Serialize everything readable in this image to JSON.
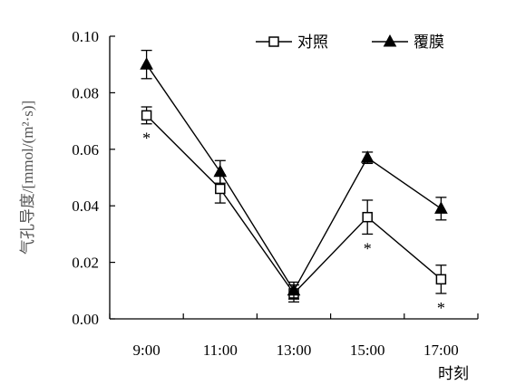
{
  "chart_data": {
    "type": "line",
    "title": "",
    "xlabel": "时刻",
    "ylabel": "气孔导度/[mmol/(m²·s)]",
    "ylim": [
      0,
      0.1
    ],
    "yticks": [
      "0.00",
      "0.02",
      "0.04",
      "0.06",
      "0.08",
      "0.10"
    ],
    "categories": [
      "9:00",
      "11:00",
      "13:00",
      "15:00",
      "17:00"
    ],
    "legend_placement": "top-right",
    "grid": false,
    "series": [
      {
        "name": "对照",
        "marker": "open-square",
        "color": "#000000",
        "values": [
          0.072,
          0.046,
          0.009,
          0.036,
          0.014
        ],
        "errors": [
          0.003,
          0.005,
          0.003,
          0.006,
          0.005
        ],
        "significance": [
          "*",
          "",
          "",
          "*",
          "*"
        ]
      },
      {
        "name": "覆膜",
        "marker": "filled-triangle",
        "color": "#000000",
        "values": [
          0.09,
          0.052,
          0.01,
          0.057,
          0.039
        ],
        "errors": [
          0.005,
          0.004,
          0.003,
          0.002,
          0.004
        ],
        "significance": [
          "",
          "",
          "",
          "",
          ""
        ]
      }
    ]
  }
}
